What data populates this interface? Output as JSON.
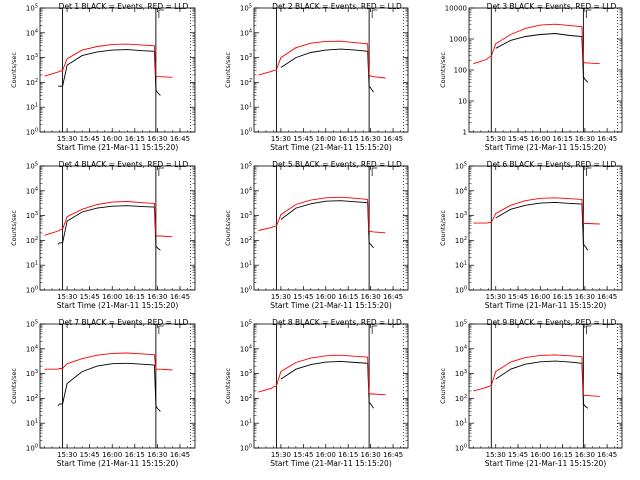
{
  "figure_type": "multi-panel line plots",
  "colors": {
    "events": "#000000",
    "lld": "#ff0000",
    "axes": "#000000",
    "background": "#ffffff"
  },
  "chart_data": [
    {
      "type": "line",
      "title": "Det 1 BLACK = Events, RED = LLD",
      "xlabel": "Start Time (21-Mar-11 15:15:20)",
      "ylabel": "Counts/sec",
      "yscale": "log",
      "ylim": [
        1,
        100000
      ],
      "ytick_labels": [
        "10^0",
        "10^1",
        "10^2",
        "10^3",
        "10^4",
        "10^5"
      ],
      "xtick_labels": [
        "15:30",
        "15:45",
        "16:00",
        "16:15",
        "16:30",
        "16:45"
      ],
      "x": [
        "15:15",
        "15:24",
        "15:25",
        "15:27",
        "15:30",
        "15:40",
        "15:50",
        "16:00",
        "16:10",
        "16:20",
        "16:28",
        "16:29",
        "16:30",
        "16:32",
        "16:40"
      ],
      "series": [
        {
          "name": "Events",
          "values": [
            null,
            70,
            70,
            70,
            500,
            1200,
            1700,
            2000,
            2100,
            1900,
            1800,
            50,
            40,
            30,
            null
          ]
        },
        {
          "name": "LLD",
          "values": [
            180,
            260,
            280,
            300,
            900,
            2000,
            2800,
            3400,
            3500,
            3200,
            3000,
            180,
            170,
            170,
            160
          ]
        }
      ]
    },
    {
      "type": "line",
      "title": "Det 2 BLACK = Events, RED = LLD",
      "xlabel": "Start Time (21-Mar-11 15:15:20)",
      "ylabel": "Counts/sec",
      "yscale": "log",
      "ylim": [
        1,
        100000
      ],
      "ytick_labels": [
        "10^0",
        "10^1",
        "10^2",
        "10^3",
        "10^4",
        "10^5"
      ],
      "xtick_labels": [
        "15:30",
        "15:45",
        "16:00",
        "16:15",
        "16:30",
        "16:45"
      ],
      "x": [
        "15:15",
        "15:24",
        "15:25",
        "15:27",
        "15:30",
        "15:40",
        "15:50",
        "16:00",
        "16:10",
        "16:20",
        "16:28",
        "16:29",
        "16:30",
        "16:32",
        "16:40"
      ],
      "series": [
        {
          "name": "Events",
          "values": [
            null,
            null,
            null,
            null,
            400,
            1000,
            1600,
            2000,
            2200,
            2000,
            1800,
            70,
            60,
            40,
            null
          ]
        },
        {
          "name": "LLD",
          "values": [
            200,
            280,
            300,
            320,
            1000,
            2500,
            3800,
            4500,
            4600,
            4000,
            3600,
            200,
            180,
            170,
            150
          ]
        }
      ]
    },
    {
      "type": "line",
      "title": "Det 3 BLACK = Events, RED = LLD",
      "xlabel": "Start Time (21-Mar-11 15:15:20)",
      "ylabel": "Counts/sec",
      "yscale": "log",
      "ylim": [
        1,
        10000
      ],
      "ytick_labels": [
        "1",
        "10",
        "100",
        "1000",
        "10000"
      ],
      "xtick_labels": [
        "15:30",
        "15:45",
        "16:00",
        "16:15",
        "16:30",
        "16:45"
      ],
      "x": [
        "15:15",
        "15:24",
        "15:25",
        "15:27",
        "15:30",
        "15:40",
        "15:50",
        "16:00",
        "16:10",
        "16:20",
        "16:28",
        "16:29",
        "16:30",
        "16:32",
        "16:40"
      ],
      "series": [
        {
          "name": "Events",
          "values": [
            null,
            null,
            null,
            null,
            500,
            900,
            1200,
            1400,
            1500,
            1300,
            1200,
            60,
            50,
            40,
            null
          ]
        },
        {
          "name": "LLD",
          "values": [
            160,
            220,
            250,
            280,
            700,
            1400,
            2200,
            2800,
            3000,
            2700,
            2500,
            180,
            170,
            170,
            160
          ]
        }
      ]
    },
    {
      "type": "line",
      "title": "Det 4 BLACK = Events, RED = LLD",
      "xlabel": "Start Time (21-Mar-11 15:15:20)",
      "ylabel": "Counts/sec",
      "yscale": "log",
      "ylim": [
        1,
        100000
      ],
      "ytick_labels": [
        "10^0",
        "10^1",
        "10^2",
        "10^3",
        "10^4",
        "10^5"
      ],
      "xtick_labels": [
        "15:30",
        "15:45",
        "16:00",
        "16:15",
        "16:30",
        "16:45"
      ],
      "x": [
        "15:15",
        "15:24",
        "15:25",
        "15:27",
        "15:30",
        "15:40",
        "15:50",
        "16:00",
        "16:10",
        "16:20",
        "16:28",
        "16:29",
        "16:30",
        "16:32",
        "16:40"
      ],
      "series": [
        {
          "name": "Events",
          "values": [
            null,
            70,
            80,
            80,
            600,
            1400,
            2000,
            2400,
            2500,
            2300,
            2200,
            60,
            50,
            40,
            null
          ]
        },
        {
          "name": "LLD",
          "values": [
            160,
            240,
            260,
            280,
            900,
            1800,
            2800,
            3500,
            3700,
            3300,
            3100,
            160,
            150,
            150,
            140
          ]
        }
      ]
    },
    {
      "type": "line",
      "title": "Det 5 BLACK = Events, RED = LLD",
      "xlabel": "Start Time (21-Mar-11 15:15:20)",
      "ylabel": "Counts/sec",
      "yscale": "log",
      "ylim": [
        1,
        100000
      ],
      "ytick_labels": [
        "10^0",
        "10^1",
        "10^2",
        "10^3",
        "10^4",
        "10^5"
      ],
      "xtick_labels": [
        "15:30",
        "15:45",
        "16:00",
        "16:15",
        "16:30",
        "16:45"
      ],
      "x": [
        "15:15",
        "15:24",
        "15:25",
        "15:27",
        "15:30",
        "15:40",
        "15:50",
        "16:00",
        "16:10",
        "16:20",
        "16:28",
        "16:29",
        "16:30",
        "16:32",
        "16:40"
      ],
      "series": [
        {
          "name": "Events",
          "values": [
            null,
            null,
            null,
            null,
            700,
            2000,
            3000,
            3800,
            4000,
            3600,
            3300,
            80,
            70,
            50,
            null
          ]
        },
        {
          "name": "LLD",
          "values": [
            250,
            330,
            360,
            380,
            1100,
            2800,
            4200,
            5200,
            5500,
            5000,
            4500,
            250,
            230,
            220,
            200
          ]
        }
      ]
    },
    {
      "type": "line",
      "title": "Det 6 BLACK = Events, RED = LLD",
      "xlabel": "Start Time (21-Mar-11 15:15:20)",
      "ylabel": "Counts/sec",
      "yscale": "log",
      "ylim": [
        1,
        100000
      ],
      "ytick_labels": [
        "10^0",
        "10^1",
        "10^2",
        "10^3",
        "10^4",
        "10^5"
      ],
      "xtick_labels": [
        "15:30",
        "15:45",
        "16:00",
        "16:15",
        "16:30",
        "16:45"
      ],
      "x": [
        "15:15",
        "15:24",
        "15:25",
        "15:27",
        "15:30",
        "15:40",
        "15:50",
        "16:00",
        "16:10",
        "16:20",
        "16:28",
        "16:29",
        "16:30",
        "16:32",
        "16:40"
      ],
      "series": [
        {
          "name": "Events",
          "values": [
            null,
            null,
            null,
            null,
            800,
            1800,
            2600,
            3200,
            3400,
            3100,
            2900,
            70,
            60,
            40,
            null
          ]
        },
        {
          "name": "LLD",
          "values": [
            500,
            500,
            520,
            520,
            1200,
            2600,
            4000,
            5000,
            5200,
            4800,
            4500,
            500,
            480,
            480,
            460
          ]
        }
      ]
    },
    {
      "type": "line",
      "title": "Det 7 BLACK = Events, RED = LLD",
      "xlabel": "Start Time (21-Mar-11 15:15:20)",
      "ylabel": "Counts/sec",
      "yscale": "log",
      "ylim": [
        1,
        100000
      ],
      "ytick_labels": [
        "10^0",
        "10^1",
        "10^2",
        "10^3",
        "10^4",
        "10^5"
      ],
      "xtick_labels": [
        "15:30",
        "15:45",
        "16:00",
        "16:15",
        "16:30",
        "16:45"
      ],
      "x": [
        "15:15",
        "15:24",
        "15:25",
        "15:27",
        "15:30",
        "15:40",
        "15:50",
        "16:00",
        "16:10",
        "16:20",
        "16:28",
        "16:29",
        "16:30",
        "16:32",
        "16:40"
      ],
      "series": [
        {
          "name": "Events",
          "values": [
            null,
            50,
            60,
            60,
            400,
            1200,
            2000,
            2500,
            2600,
            2400,
            2200,
            50,
            40,
            30,
            null
          ]
        },
        {
          "name": "LLD",
          "values": [
            1500,
            1500,
            1600,
            1600,
            2500,
            4000,
            5500,
            6500,
            6800,
            6200,
            5800,
            1500,
            1500,
            1500,
            1400
          ]
        }
      ]
    },
    {
      "type": "line",
      "title": "Det 8 BLACK = Events, RED = LLD",
      "xlabel": "Start Time (21-Mar-11 15:15:20)",
      "ylabel": "Counts/sec",
      "yscale": "log",
      "ylim": [
        1,
        100000
      ],
      "ytick_labels": [
        "10^0",
        "10^1",
        "10^2",
        "10^3",
        "10^4",
        "10^5"
      ],
      "xtick_labels": [
        "15:30",
        "15:45",
        "16:00",
        "16:15",
        "16:30",
        "16:45"
      ],
      "x": [
        "15:15",
        "15:24",
        "15:25",
        "15:27",
        "15:30",
        "15:40",
        "15:50",
        "16:00",
        "16:10",
        "16:20",
        "16:28",
        "16:29",
        "16:30",
        "16:32",
        "16:40"
      ],
      "series": [
        {
          "name": "Events",
          "values": [
            null,
            null,
            null,
            null,
            600,
            1500,
            2300,
            2900,
            3100,
            2800,
            2600,
            70,
            60,
            40,
            null
          ]
        },
        {
          "name": "LLD",
          "values": [
            180,
            260,
            290,
            320,
            1200,
            2800,
            4200,
            5200,
            5500,
            5000,
            4600,
            160,
            150,
            150,
            140
          ]
        }
      ]
    },
    {
      "type": "line",
      "title": "Det 9 BLACK = Events, RED = LLD",
      "xlabel": "Start Time (21-Mar-11 15:15:20)",
      "ylabel": "Counts/sec",
      "yscale": "log",
      "ylim": [
        1,
        100000
      ],
      "ytick_labels": [
        "10^0",
        "10^1",
        "10^2",
        "10^3",
        "10^4",
        "10^5"
      ],
      "xtick_labels": [
        "15:30",
        "15:45",
        "16:00",
        "16:15",
        "16:30",
        "16:45"
      ],
      "x": [
        "15:15",
        "15:24",
        "15:25",
        "15:27",
        "15:30",
        "15:40",
        "15:50",
        "16:00",
        "16:10",
        "16:20",
        "16:28",
        "16:29",
        "16:30",
        "16:32",
        "16:40"
      ],
      "series": [
        {
          "name": "Events",
          "values": [
            null,
            null,
            null,
            null,
            600,
            1500,
            2400,
            3000,
            3200,
            2900,
            2600,
            60,
            50,
            40,
            null
          ]
        },
        {
          "name": "LLD",
          "values": [
            200,
            280,
            300,
            330,
            1200,
            2900,
            4400,
            5400,
            5700,
            5200,
            4800,
            140,
            130,
            130,
            120
          ]
        }
      ]
    }
  ]
}
